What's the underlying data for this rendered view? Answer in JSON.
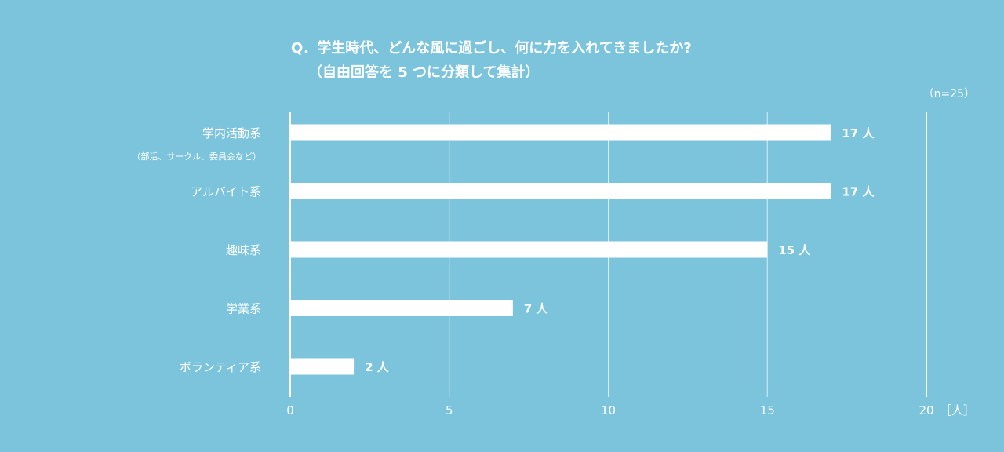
{
  "chart_data": {
    "type": "bar",
    "orientation": "horizontal",
    "title_line1": "Q．学生時代、どんな風に過ごし、何に力を入れてきましたか?",
    "title_line2": "（自由回答を 5 つに分類して集計）",
    "sample_note": "（n=25）",
    "categories": [
      {
        "label": "学内活動系",
        "sublabel": "（部活、サークル、委員会など）",
        "value": 17,
        "value_label": "17 人"
      },
      {
        "label": "アルバイト系",
        "sublabel": "",
        "value": 17,
        "value_label": "17 人"
      },
      {
        "label": "趣味系",
        "sublabel": "",
        "value": 15,
        "value_label": "15 人"
      },
      {
        "label": "学業系",
        "sublabel": "",
        "value": 7,
        "value_label": "7 人"
      },
      {
        "label": "ボランティア系",
        "sublabel": "",
        "value": 2,
        "value_label": "2 人"
      }
    ],
    "xlim": [
      0,
      20
    ],
    "xticks": [
      0,
      5,
      10,
      15,
      20
    ],
    "xunit": "［人］",
    "grid": true,
    "colors": {
      "background": "#7cc4dc",
      "bar": "#ffffff",
      "grid": "#ffffff",
      "text": "#ffffff"
    }
  }
}
